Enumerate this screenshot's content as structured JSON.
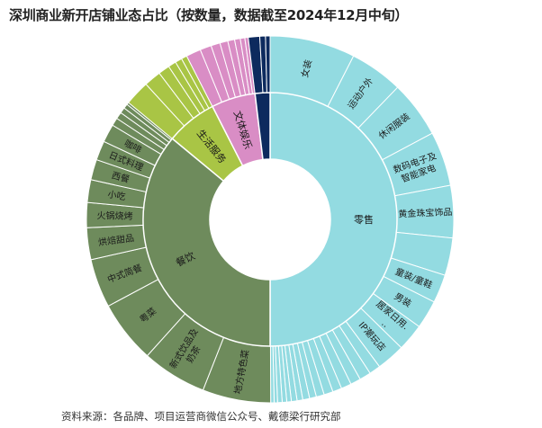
{
  "chart_data": {
    "type": "sunburst",
    "title": "深圳商业新开店铺业态占比（按数量，数据截至2024年12月中旬）",
    "source": "资料来源：各品牌、项目运营商微信公众号、戴德梁行研究部",
    "inner": [
      {
        "name": "零售",
        "value": 50,
        "color": "#93dbe1"
      },
      {
        "name": "餐饮",
        "value": 36,
        "color": "#6e8b5c"
      },
      {
        "name": "生活服务",
        "value": 6.5,
        "color": "#a9c545"
      },
      {
        "name": "文体娱乐",
        "value": 5.6,
        "color": "#d98dc5"
      },
      {
        "name": "",
        "value": 1.9,
        "color": "#0d2a5e"
      }
    ],
    "outer": [
      {
        "name": "女装",
        "value": 7.5,
        "parent": 0
      },
      {
        "name": "运动户外",
        "value": 4.7,
        "parent": 0
      },
      {
        "name": "休闲服装",
        "value": 5.0,
        "parent": 0
      },
      {
        "name": "数码电子及智能家电",
        "value": 4.8,
        "parent": 0
      },
      {
        "name": "黄金珠宝饰品",
        "value": 4.6,
        "parent": 0
      },
      {
        "name": "",
        "value": 3.3,
        "parent": 0
      },
      {
        "name": "童装/童鞋",
        "value": 2.5,
        "parent": 0
      },
      {
        "name": "男装",
        "value": 2.5,
        "parent": 0
      },
      {
        "name": "居家日用...",
        "value": 2.4,
        "parent": 0
      },
      {
        "name": "IP潮玩店",
        "value": 2.5,
        "parent": 0
      },
      {
        "name": "",
        "value": 1.0,
        "parent": 0
      },
      {
        "name": "",
        "value": 1.0,
        "parent": 0
      },
      {
        "name": "",
        "value": 0.9,
        "parent": 0
      },
      {
        "name": "",
        "value": 0.9,
        "parent": 0
      },
      {
        "name": "",
        "value": 0.8,
        "parent": 0
      },
      {
        "name": "",
        "value": 0.8,
        "parent": 0
      },
      {
        "name": "",
        "value": 0.7,
        "parent": 0
      },
      {
        "name": "",
        "value": 0.6,
        "parent": 0
      },
      {
        "name": "",
        "value": 0.6,
        "parent": 0
      },
      {
        "name": "",
        "value": 0.5,
        "parent": 0
      },
      {
        "name": "",
        "value": 0.5,
        "parent": 0
      },
      {
        "name": "",
        "value": 0.4,
        "parent": 0
      },
      {
        "name": "",
        "value": 0.4,
        "parent": 0
      },
      {
        "name": "",
        "value": 0.4,
        "parent": 0
      },
      {
        "name": "",
        "value": 0.3,
        "parent": 0
      },
      {
        "name": "",
        "value": 0.3,
        "parent": 0
      },
      {
        "name": "地方特色菜",
        "value": 6.0,
        "parent": 1
      },
      {
        "name": "新式饮品及奶茶",
        "value": 5.7,
        "parent": 1
      },
      {
        "name": "粤菜",
        "value": 5.5,
        "parent": 1
      },
      {
        "name": "中式简餐",
        "value": 4.3,
        "parent": 1
      },
      {
        "name": "烘焙甜品",
        "value": 2.8,
        "parent": 1
      },
      {
        "name": "火锅烧烤",
        "value": 2.2,
        "parent": 1
      },
      {
        "name": "小吃",
        "value": 2.0,
        "parent": 1
      },
      {
        "name": "西餐",
        "value": 1.8,
        "parent": 1
      },
      {
        "name": "日式料理",
        "value": 1.7,
        "parent": 1
      },
      {
        "name": "咖啡",
        "value": 1.6,
        "parent": 1
      },
      {
        "name": "",
        "value": 0.7,
        "parent": 1
      },
      {
        "name": "",
        "value": 0.6,
        "parent": 1
      },
      {
        "name": "",
        "value": 0.5,
        "parent": 1
      },
      {
        "name": "",
        "value": 0.4,
        "parent": 1
      },
      {
        "name": "",
        "value": 0.2,
        "parent": 1
      },
      {
        "name": "",
        "value": 2.2,
        "parent": 2
      },
      {
        "name": "",
        "value": 1.5,
        "parent": 2
      },
      {
        "name": "",
        "value": 1.0,
        "parent": 2
      },
      {
        "name": "",
        "value": 0.7,
        "parent": 2
      },
      {
        "name": "",
        "value": 0.6,
        "parent": 2
      },
      {
        "name": "",
        "value": 0.5,
        "parent": 2
      },
      {
        "name": "",
        "value": 1.3,
        "parent": 3
      },
      {
        "name": "",
        "value": 1.0,
        "parent": 3
      },
      {
        "name": "",
        "value": 0.8,
        "parent": 3
      },
      {
        "name": "",
        "value": 0.7,
        "parent": 3
      },
      {
        "name": "",
        "value": 0.6,
        "parent": 3
      },
      {
        "name": "",
        "value": 0.5,
        "parent": 3
      },
      {
        "name": "",
        "value": 0.4,
        "parent": 3
      },
      {
        "name": "",
        "value": 0.3,
        "parent": 3
      },
      {
        "name": "",
        "value": 1.0,
        "parent": 4
      },
      {
        "name": "",
        "value": 0.5,
        "parent": 4
      },
      {
        "name": "",
        "value": 0.4,
        "parent": 4
      }
    ]
  }
}
